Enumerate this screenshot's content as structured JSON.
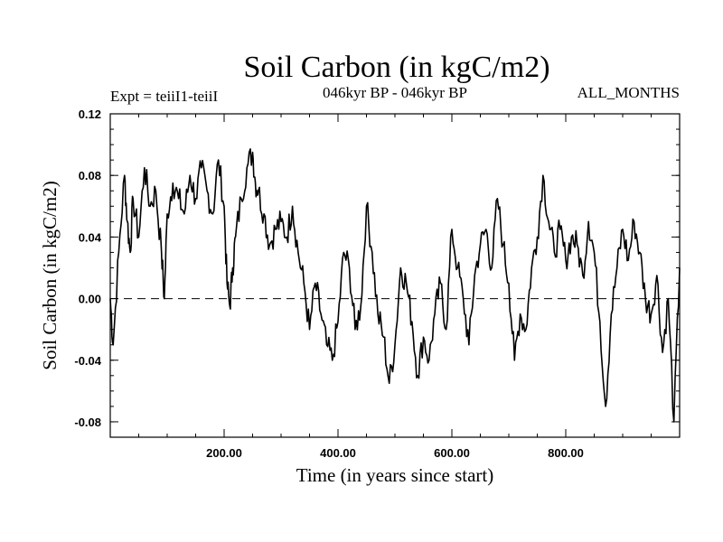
{
  "header": {
    "title": "Soil Carbon (in kgC/m2)",
    "experiment": "Expt = teiiI1-teiiI",
    "period": "046kyr BP - 046kyr BP",
    "months": "ALL_MONTHS"
  },
  "chart_data": {
    "type": "line",
    "title": "Soil Carbon (in kgC/m2)",
    "xlabel": "Time (in years since start)",
    "ylabel": "Soil Carbon (in kgC/m2)",
    "xlim": [
      0,
      1000
    ],
    "ylim": [
      -0.09,
      0.12
    ],
    "x_ticks": [
      200,
      400,
      600,
      800
    ],
    "x_tick_labels": [
      "200.00",
      "400.00",
      "600.00",
      "800.00"
    ],
    "y_ticks": [
      -0.08,
      -0.04,
      0.0,
      0.04,
      0.08,
      0.12
    ],
    "y_tick_labels": [
      "-0.08",
      "-0.04",
      "0.00",
      "0.04",
      "0.08",
      "0.12"
    ],
    "reference_line": {
      "y": 0.0,
      "style": "dashed"
    },
    "grid": false,
    "series": [
      {
        "x": [
          0,
          5,
          15,
          25,
          30,
          35,
          40,
          50,
          60,
          70,
          80,
          90,
          95,
          100,
          110,
          120,
          130,
          140,
          150,
          160,
          170,
          180,
          190,
          200,
          205,
          210,
          215,
          220,
          230,
          240,
          250,
          255,
          260,
          270,
          280,
          290,
          300,
          310,
          320,
          330,
          340,
          350,
          360,
          370,
          380,
          390,
          400,
          410,
          420,
          430,
          440,
          450,
          460,
          470,
          480,
          490,
          500,
          510,
          520,
          530,
          540,
          550,
          560,
          570,
          580,
          590,
          600,
          610,
          620,
          630,
          640,
          650,
          660,
          670,
          680,
          690,
          700,
          710,
          720,
          730,
          740,
          750,
          760,
          770,
          780,
          790,
          800,
          810,
          820,
          830,
          840,
          850,
          860,
          870,
          880,
          890,
          900,
          910,
          920,
          930,
          940,
          950,
          960,
          970,
          980,
          990,
          1000
        ],
        "y": [
          0.0,
          -0.03,
          0.03,
          0.08,
          0.05,
          0.03,
          0.065,
          0.04,
          0.085,
          0.06,
          0.07,
          0.03,
          0.0,
          0.055,
          0.075,
          0.065,
          0.055,
          0.08,
          0.065,
          0.085,
          0.07,
          0.055,
          0.09,
          0.06,
          0.01,
          -0.005,
          0.02,
          0.04,
          0.065,
          0.085,
          0.095,
          0.075,
          0.07,
          0.055,
          0.035,
          0.045,
          0.05,
          0.04,
          0.06,
          0.03,
          0.01,
          -0.02,
          0.01,
          -0.01,
          -0.03,
          -0.04,
          -0.015,
          0.03,
          0.02,
          -0.02,
          -0.005,
          0.06,
          0.03,
          -0.01,
          -0.025,
          -0.055,
          -0.03,
          0.02,
          0.01,
          -0.015,
          -0.05,
          -0.025,
          -0.04,
          -0.01,
          0.01,
          -0.02,
          0.045,
          0.02,
          0.0,
          -0.03,
          0.015,
          0.035,
          0.045,
          0.02,
          0.065,
          0.035,
          0.01,
          -0.04,
          -0.01,
          -0.02,
          0.02,
          0.04,
          0.08,
          0.05,
          0.03,
          0.045,
          0.025,
          0.04,
          0.035,
          0.015,
          0.05,
          0.03,
          -0.015,
          -0.07,
          -0.01,
          0.02,
          0.045,
          0.025,
          0.05,
          0.03,
          0.0,
          -0.01,
          0.015,
          -0.035,
          0.0,
          -0.08,
          0.02
        ]
      }
    ]
  }
}
